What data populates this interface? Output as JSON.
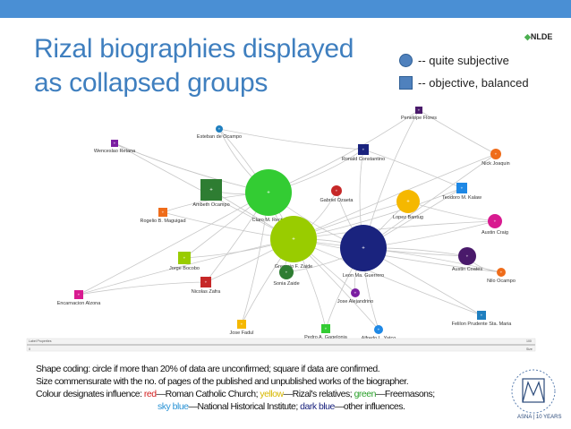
{
  "title": "Rizal biographies displayed as collapsed groups",
  "legend": [
    {
      "shape": "circle",
      "label": "-- quite subjective"
    },
    {
      "shape": "square",
      "label": "-- objective, balanced"
    }
  ],
  "logo": {
    "text": "NLDE"
  },
  "colors": {
    "topbar": "#4a8fd4",
    "title": "#3f7fbf",
    "edge": "#c8c8c8"
  },
  "nodes": [
    {
      "label": "Penelope Flores",
      "shape": "square",
      "color": "#4a1a6b"
    },
    {
      "label": "Esteban de Ocampo",
      "shape": "circle",
      "color": "#1f7fbf"
    },
    {
      "label": "Wenceslao Retana",
      "shape": "square",
      "color": "#7b1fa2"
    },
    {
      "label": "Ronald Constantino",
      "shape": "square",
      "color": "#1a237e"
    },
    {
      "label": "Nick Joaquin",
      "shape": "circle",
      "color": "#ef6c1a"
    },
    {
      "label": "Ambeth Ocampo",
      "shape": "square",
      "color": "#2e7d32"
    },
    {
      "label": "Claro M. Recto",
      "shape": "circle",
      "color": "#33cc33"
    },
    {
      "label": "Gabriel Ozaeta",
      "shape": "circle",
      "color": "#c62828"
    },
    {
      "label": "Lopez Bantug",
      "shape": "circle",
      "color": "#f5b800"
    },
    {
      "label": "Teodoro M. Kalaw",
      "shape": "square",
      "color": "#1e88e5"
    },
    {
      "label": "Rogelio B. Maguigad",
      "shape": "square",
      "color": "#ef6c1a"
    },
    {
      "label": "Austin Craig",
      "shape": "circle",
      "color": "#d81b90"
    },
    {
      "label": "Gregorio F. Zaide",
      "shape": "circle",
      "color": "#99cc00"
    },
    {
      "label": "Leon Ma. Guerrero",
      "shape": "circle",
      "color": "#1a237e"
    },
    {
      "label": "Jorge Bocobo",
      "shape": "square",
      "color": "#99cc00"
    },
    {
      "label": "Austin Coates",
      "shape": "circle",
      "color": "#4a1a6b"
    },
    {
      "label": "Nicolas Zafra",
      "shape": "square",
      "color": "#c62828"
    },
    {
      "label": "Sonia Zaide",
      "shape": "circle",
      "color": "#2e7d32"
    },
    {
      "label": "Nilo Ocampo",
      "shape": "circle",
      "color": "#ef6c1a"
    },
    {
      "label": "Encarnacion Alzona",
      "shape": "square",
      "color": "#d81b90"
    },
    {
      "label": "Jose Alejandrino",
      "shape": "circle",
      "color": "#7b1fa2"
    },
    {
      "label": "Felilon Prudente Sta. Maria",
      "shape": "square",
      "color": "#1f7fbf"
    },
    {
      "label": "Jose Fadul",
      "shape": "square",
      "color": "#f5b800"
    },
    {
      "label": "Pedro A. Gagelonia",
      "shape": "square",
      "color": "#33cc33"
    },
    {
      "label": "Alfredo L. Yatco",
      "shape": "circle",
      "color": "#1e88e5"
    }
  ],
  "slider": {
    "left_top": "Label Properties",
    "left_bottom": "0",
    "right_top": "100",
    "right_bottom": "Size"
  },
  "caption": {
    "line1": "Shape coding: circle if more than 20% of data are unconfirmed; square if data are confirmed.",
    "line2": "Size commensurate with the no. of pages of the published and unpublished works of the biographer.",
    "line3_prefix": "Colour designates influence: ",
    "red": "red",
    "red_desc": "—Roman Catholic Church; ",
    "yellow": "yellow",
    "yellow_desc": "—Rizal's relatives; ",
    "green": "green",
    "green_desc": "—Freemasons;",
    "skyblue": "sky blue",
    "skyblue_desc": "—National Historical Institute; ",
    "darkblue": "dark blue",
    "darkblue_desc": "—other influences."
  },
  "badge": {
    "label": "ASNA | 10 YEARS"
  }
}
